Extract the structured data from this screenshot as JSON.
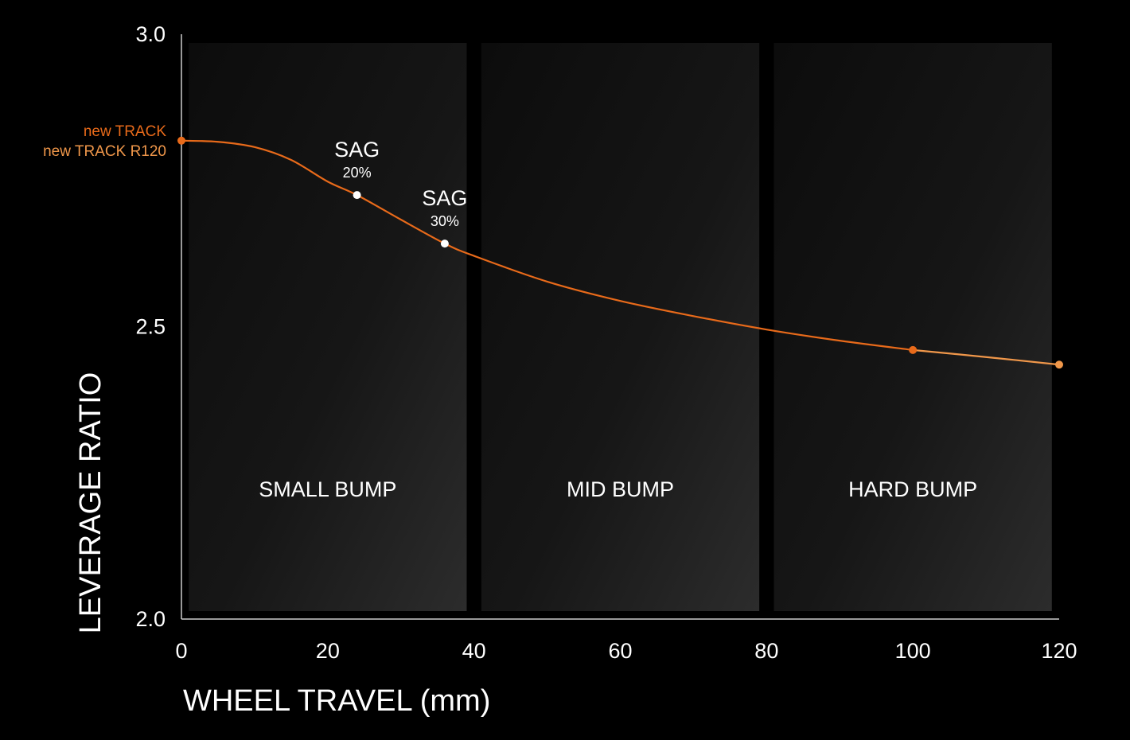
{
  "chart_data": {
    "type": "line",
    "xlabel": "WHEEL TRAVEL (mm)",
    "ylabel": "LEVERAGE RATIO",
    "xlim": [
      0,
      120
    ],
    "ylim": [
      2.0,
      3.0
    ],
    "x_ticks": [
      "0",
      "20",
      "40",
      "60",
      "80",
      "100",
      "120"
    ],
    "y_ticks": [
      "2.0",
      "2.5",
      "3.0"
    ],
    "grid": false,
    "zones": [
      {
        "label": "SMALL BUMP",
        "x_start": 1,
        "x_end": 39
      },
      {
        "label": "MID BUMP",
        "x_start": 41,
        "x_end": 79
      },
      {
        "label": "HARD BUMP",
        "x_start": 81,
        "x_end": 119
      }
    ],
    "series": [
      {
        "name": "new TRACK",
        "color": "#e86a1a",
        "x": [
          0,
          5,
          10,
          15,
          20,
          24,
          30,
          36,
          40,
          50,
          60,
          70,
          80,
          90,
          100
        ],
        "y": [
          2.818,
          2.816,
          2.807,
          2.785,
          2.748,
          2.725,
          2.683,
          2.642,
          2.621,
          2.577,
          2.544,
          2.518,
          2.495,
          2.476,
          2.46
        ]
      },
      {
        "name": "new TRACK R120",
        "color": "#f0974a",
        "x": [
          100,
          110,
          120
        ],
        "y": [
          2.46,
          2.448,
          2.435
        ]
      }
    ],
    "markers": [
      {
        "x": 0,
        "y": 2.818,
        "color": "#e86a1a"
      },
      {
        "x": 100,
        "y": 2.46,
        "color": "#e86a1a"
      },
      {
        "x": 120,
        "y": 2.435,
        "color": "#f0974a"
      }
    ],
    "annotations": [
      {
        "title": "SAG",
        "value": "20%",
        "x": 24,
        "y": 2.725,
        "color": "#ffffff"
      },
      {
        "title": "SAG",
        "value": "30%",
        "x": 36,
        "y": 2.642,
        "color": "#ffffff"
      }
    ],
    "legend": {
      "placement": "left",
      "entries": [
        {
          "label": "new TRACK",
          "color": "#e86a1a"
        },
        {
          "label": "new TRACK R120",
          "color": "#f0974a"
        }
      ]
    },
    "colors": {
      "background": "#000000",
      "axis": "#cccccc",
      "text": "#ffffff",
      "zone_fill_start": "#0c0c0c",
      "zone_fill_end": "#2c2c2c"
    }
  }
}
